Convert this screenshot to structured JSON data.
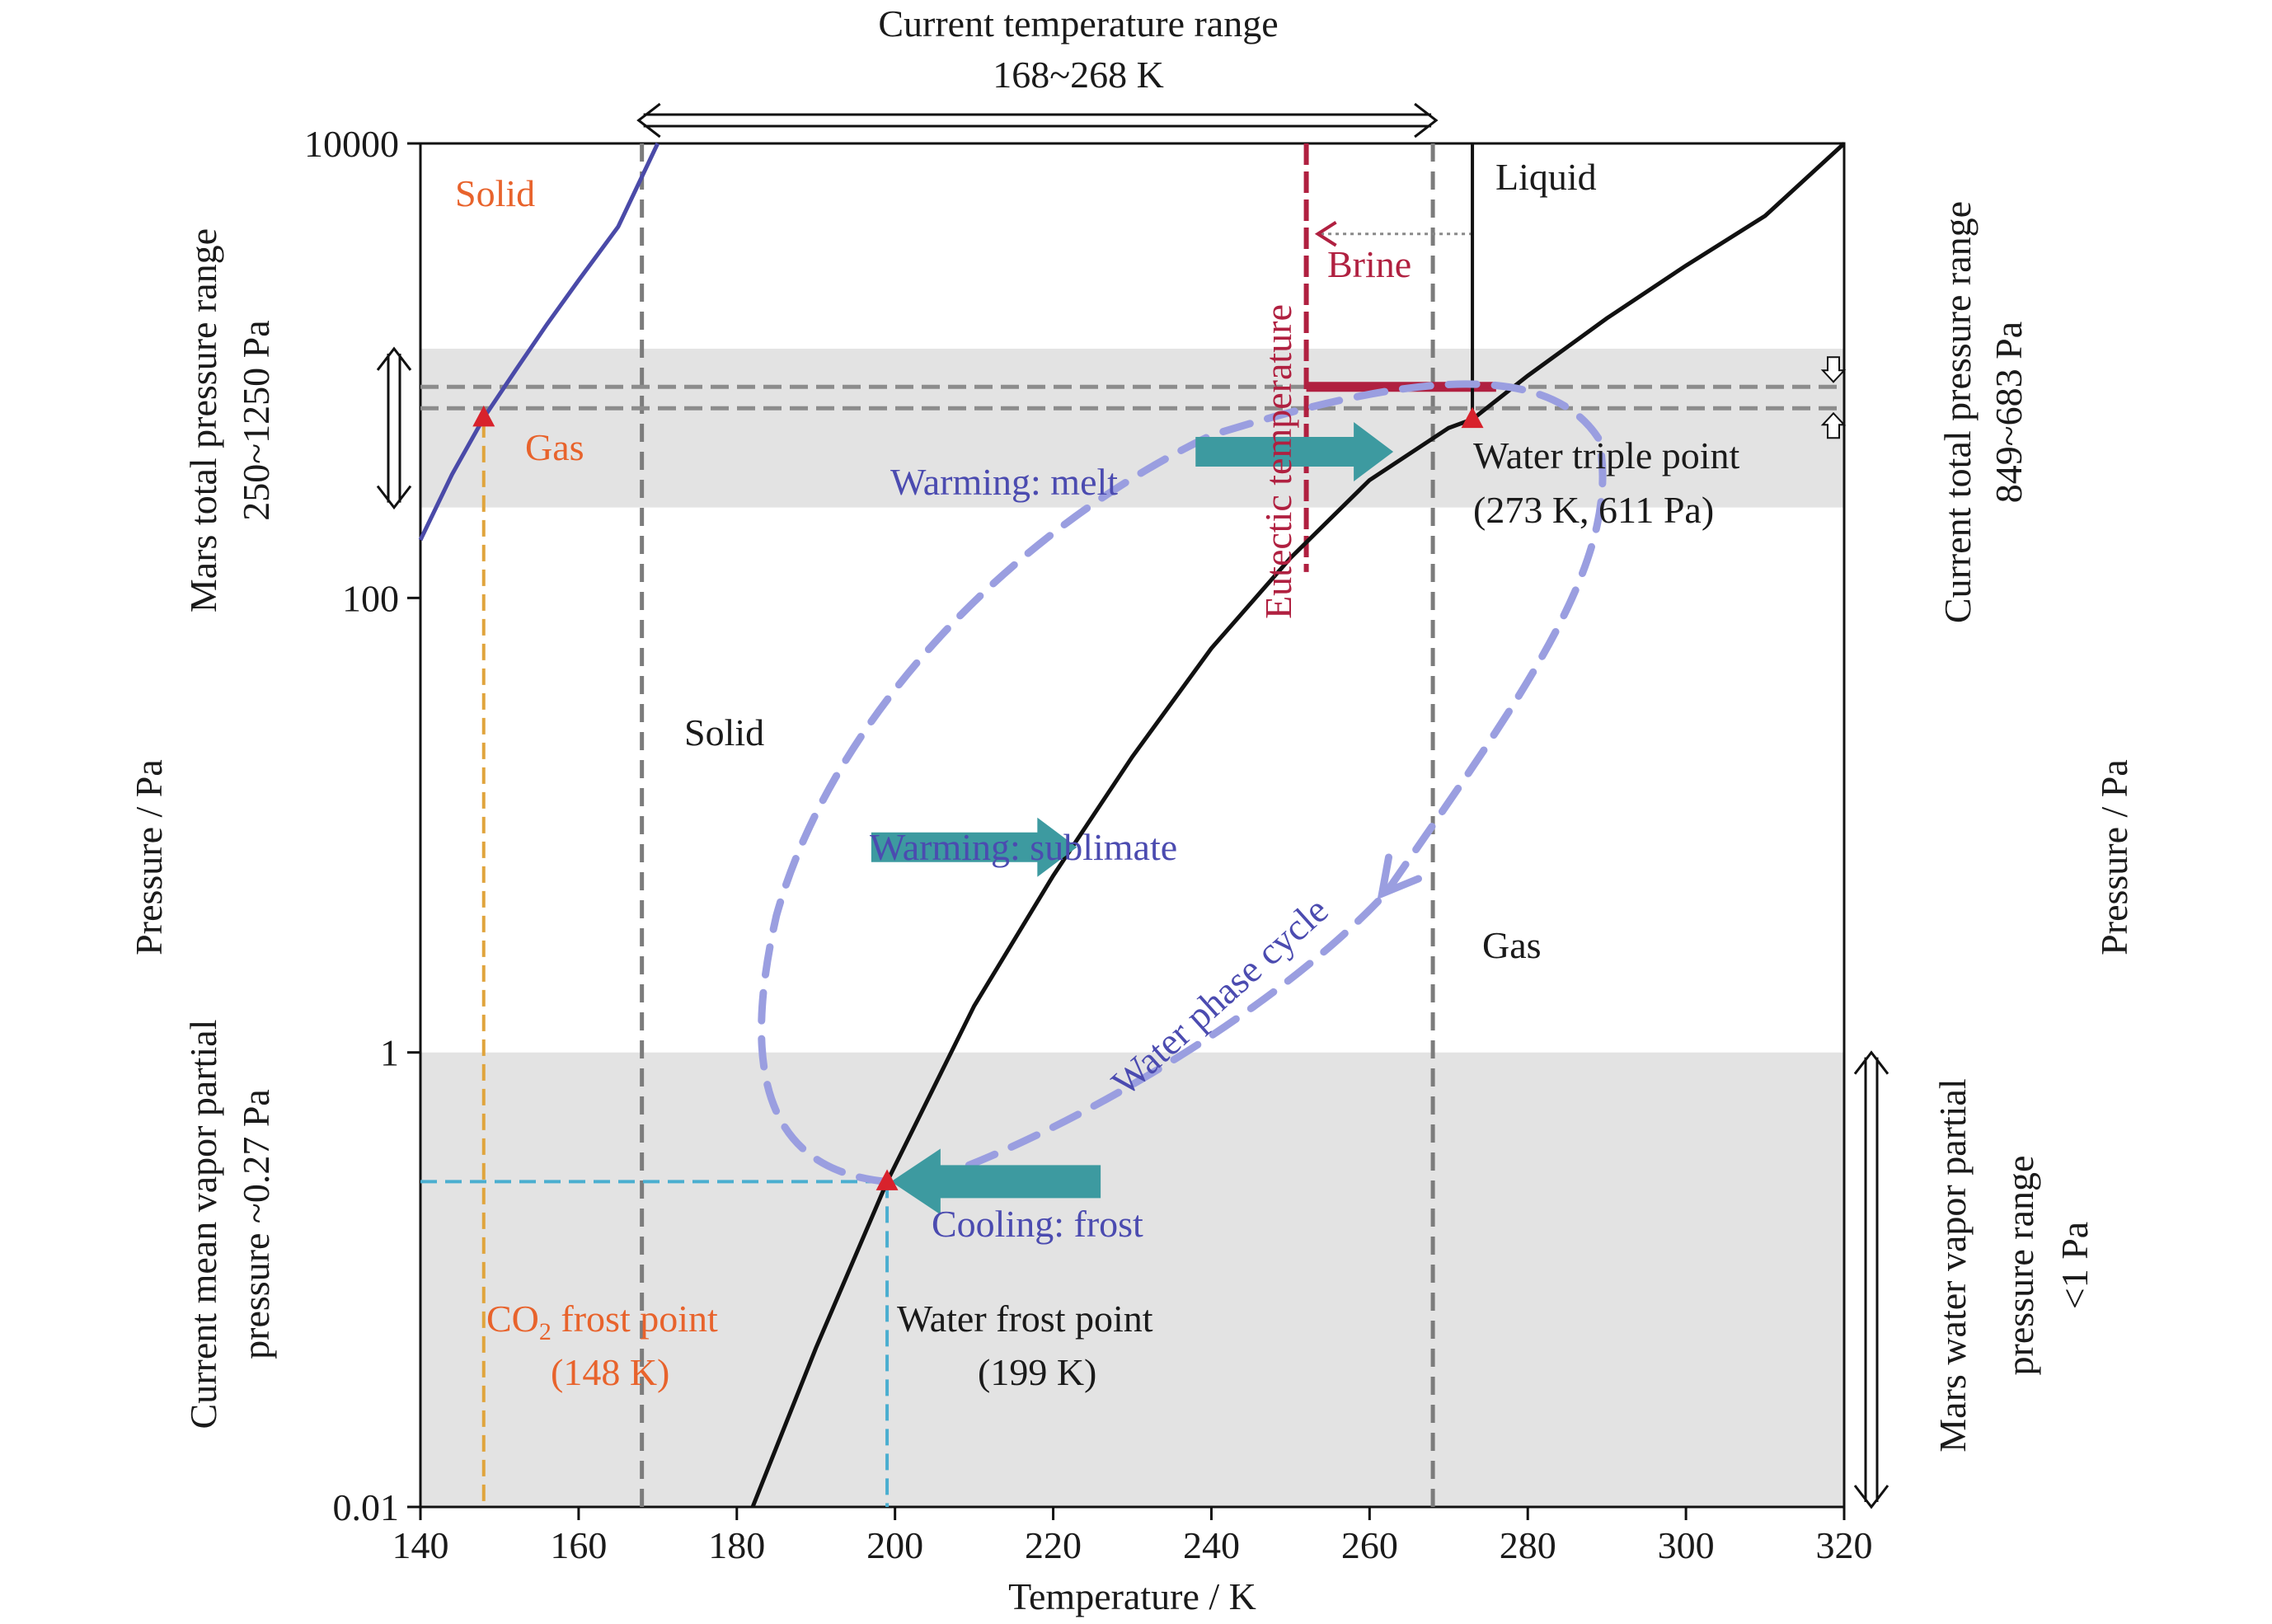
{
  "chart_data": {
    "type": "line",
    "x_axis": {
      "label": "Temperature / K",
      "range": [
        140,
        320
      ],
      "ticks": [
        140,
        160,
        180,
        200,
        220,
        240,
        260,
        280,
        300,
        320
      ]
    },
    "y_axis": {
      "label": "Pressure / Pa",
      "right_label": "Pressure / Pa",
      "scale": "log",
      "range": [
        0.01,
        10000
      ],
      "ticks": [
        0.01,
        1,
        100,
        10000
      ],
      "tick_labels": [
        "0.01",
        "1",
        "100",
        "10000"
      ]
    },
    "series": [
      {
        "name": "Water solid-gas / liquid-gas boundary",
        "color": "#111111",
        "x": [
          182,
          190,
          199,
          210,
          220,
          230,
          240,
          250,
          260,
          270,
          273,
          280,
          290,
          300,
          310,
          320
        ],
        "y": [
          0.01,
          0.05,
          0.27,
          1.6,
          6,
          20,
          60,
          150,
          330,
          560,
          611,
          950,
          1700,
          2900,
          4800,
          10000
        ]
      },
      {
        "name": "CO2 sublimation boundary",
        "color": "#4a4aa8",
        "x": [
          140,
          144,
          148,
          152,
          156,
          160,
          165,
          170
        ],
        "y": [
          180,
          350,
          620,
          1000,
          1600,
          2500,
          4300,
          10000
        ]
      },
      {
        "name": "Water solid-liquid boundary",
        "color": "#111111",
        "x": [
          273,
          273
        ],
        "y": [
          611,
          10000
        ]
      }
    ],
    "reference_lines": {
      "current_temperature_range_K": [
        168,
        268
      ],
      "eutectic_temperature_K": 252,
      "co2_frost_point_K": 148,
      "water_frost_point_K": 199,
      "water_triple_point": {
        "T_K": 273,
        "P_Pa": 611
      },
      "mars_total_pressure_range_Pa": [
        250,
        1250
      ],
      "current_total_pressure_range_Pa": [
        849,
        683
      ],
      "water_vapor_partial_pressure_max_Pa": 1,
      "current_mean_vapor_partial_pressure_Pa": 0.27
    },
    "colors": {
      "shade": "#e3e3e3",
      "dashed_ref": "#7c7c7c",
      "co2_line": "#4a4aa8",
      "water_line": "#111111",
      "brine": "#b02040",
      "teal_arrow": "#3d9aa0",
      "cycle_arrow": "#9a9ee0",
      "orange": "#e8632c",
      "triple_marker": "#d8222c",
      "co2_guide": "#e0a43c",
      "frost_guide": "#4aaed0",
      "cycle_text": "#4b4bb0"
    },
    "texts": {
      "top_title_line1": "Current temperature range",
      "top_title_line2": "168~268 K",
      "left_title_line1": "Mars total pressure range",
      "left_title_line2": "250~1250 Pa",
      "left_bottom_line1": "Current mean vapor partial",
      "left_bottom_line2": "pressure ~0.27 Pa",
      "right_top_line1": "Current total pressure range",
      "right_top_line2": "849~683 Pa",
      "right_bottom_line1": "Mars water vapor partial",
      "right_bottom_line2": "pressure range",
      "right_bottom_line3": "<1 Pa",
      "solid_co2": "Solid",
      "gas_co2": "Gas",
      "solid_water": "Solid",
      "gas_water": "Gas",
      "liquid": "Liquid",
      "brine": "Brine",
      "eutectic": "Eutectic temperature",
      "warming_melt": "Warming: melt",
      "warming_sublimate": "Warming: sublimate",
      "cooling_frost": "Cooling: frost",
      "water_phase_cycle": "Water phase cycle",
      "triple_point_line1": "Water triple point",
      "triple_point_line2": "(273 K, 611 Pa)",
      "co2_frost_line1_a": "CO",
      "co2_frost_sub": "2",
      "co2_frost_line1_b": " frost point",
      "co2_frost_line2": "(148 K)",
      "water_frost_line1": "Water frost point",
      "water_frost_line2": "(199 K)"
    }
  }
}
